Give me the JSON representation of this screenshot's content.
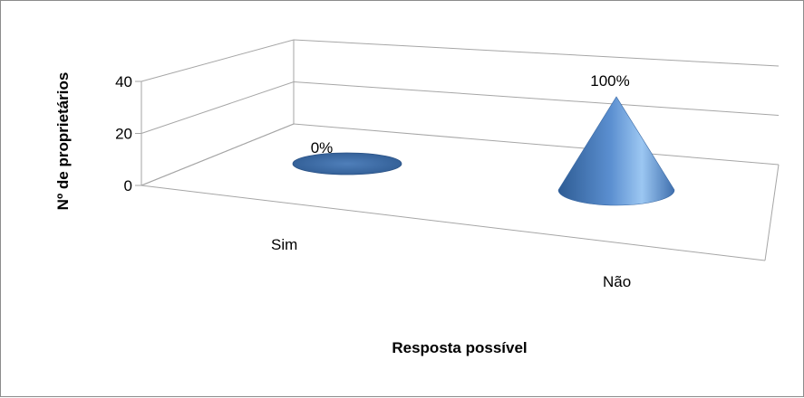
{
  "chart_data": {
    "type": "bar",
    "style": "3d-cone",
    "title": "",
    "xlabel": "Resposta possível",
    "ylabel": "Nº de proprietários",
    "ylim": [
      0,
      40
    ],
    "yticks": [
      "0",
      "20",
      "40"
    ],
    "categories": [
      "Sim",
      "Não"
    ],
    "values": [
      0,
      40
    ],
    "data_labels": [
      "0%",
      "100%"
    ],
    "grid": true,
    "legend": "none",
    "colors": {
      "series": "#4a7bb8",
      "grid": "#a6a6a6",
      "border": "#8c8c8c"
    }
  }
}
